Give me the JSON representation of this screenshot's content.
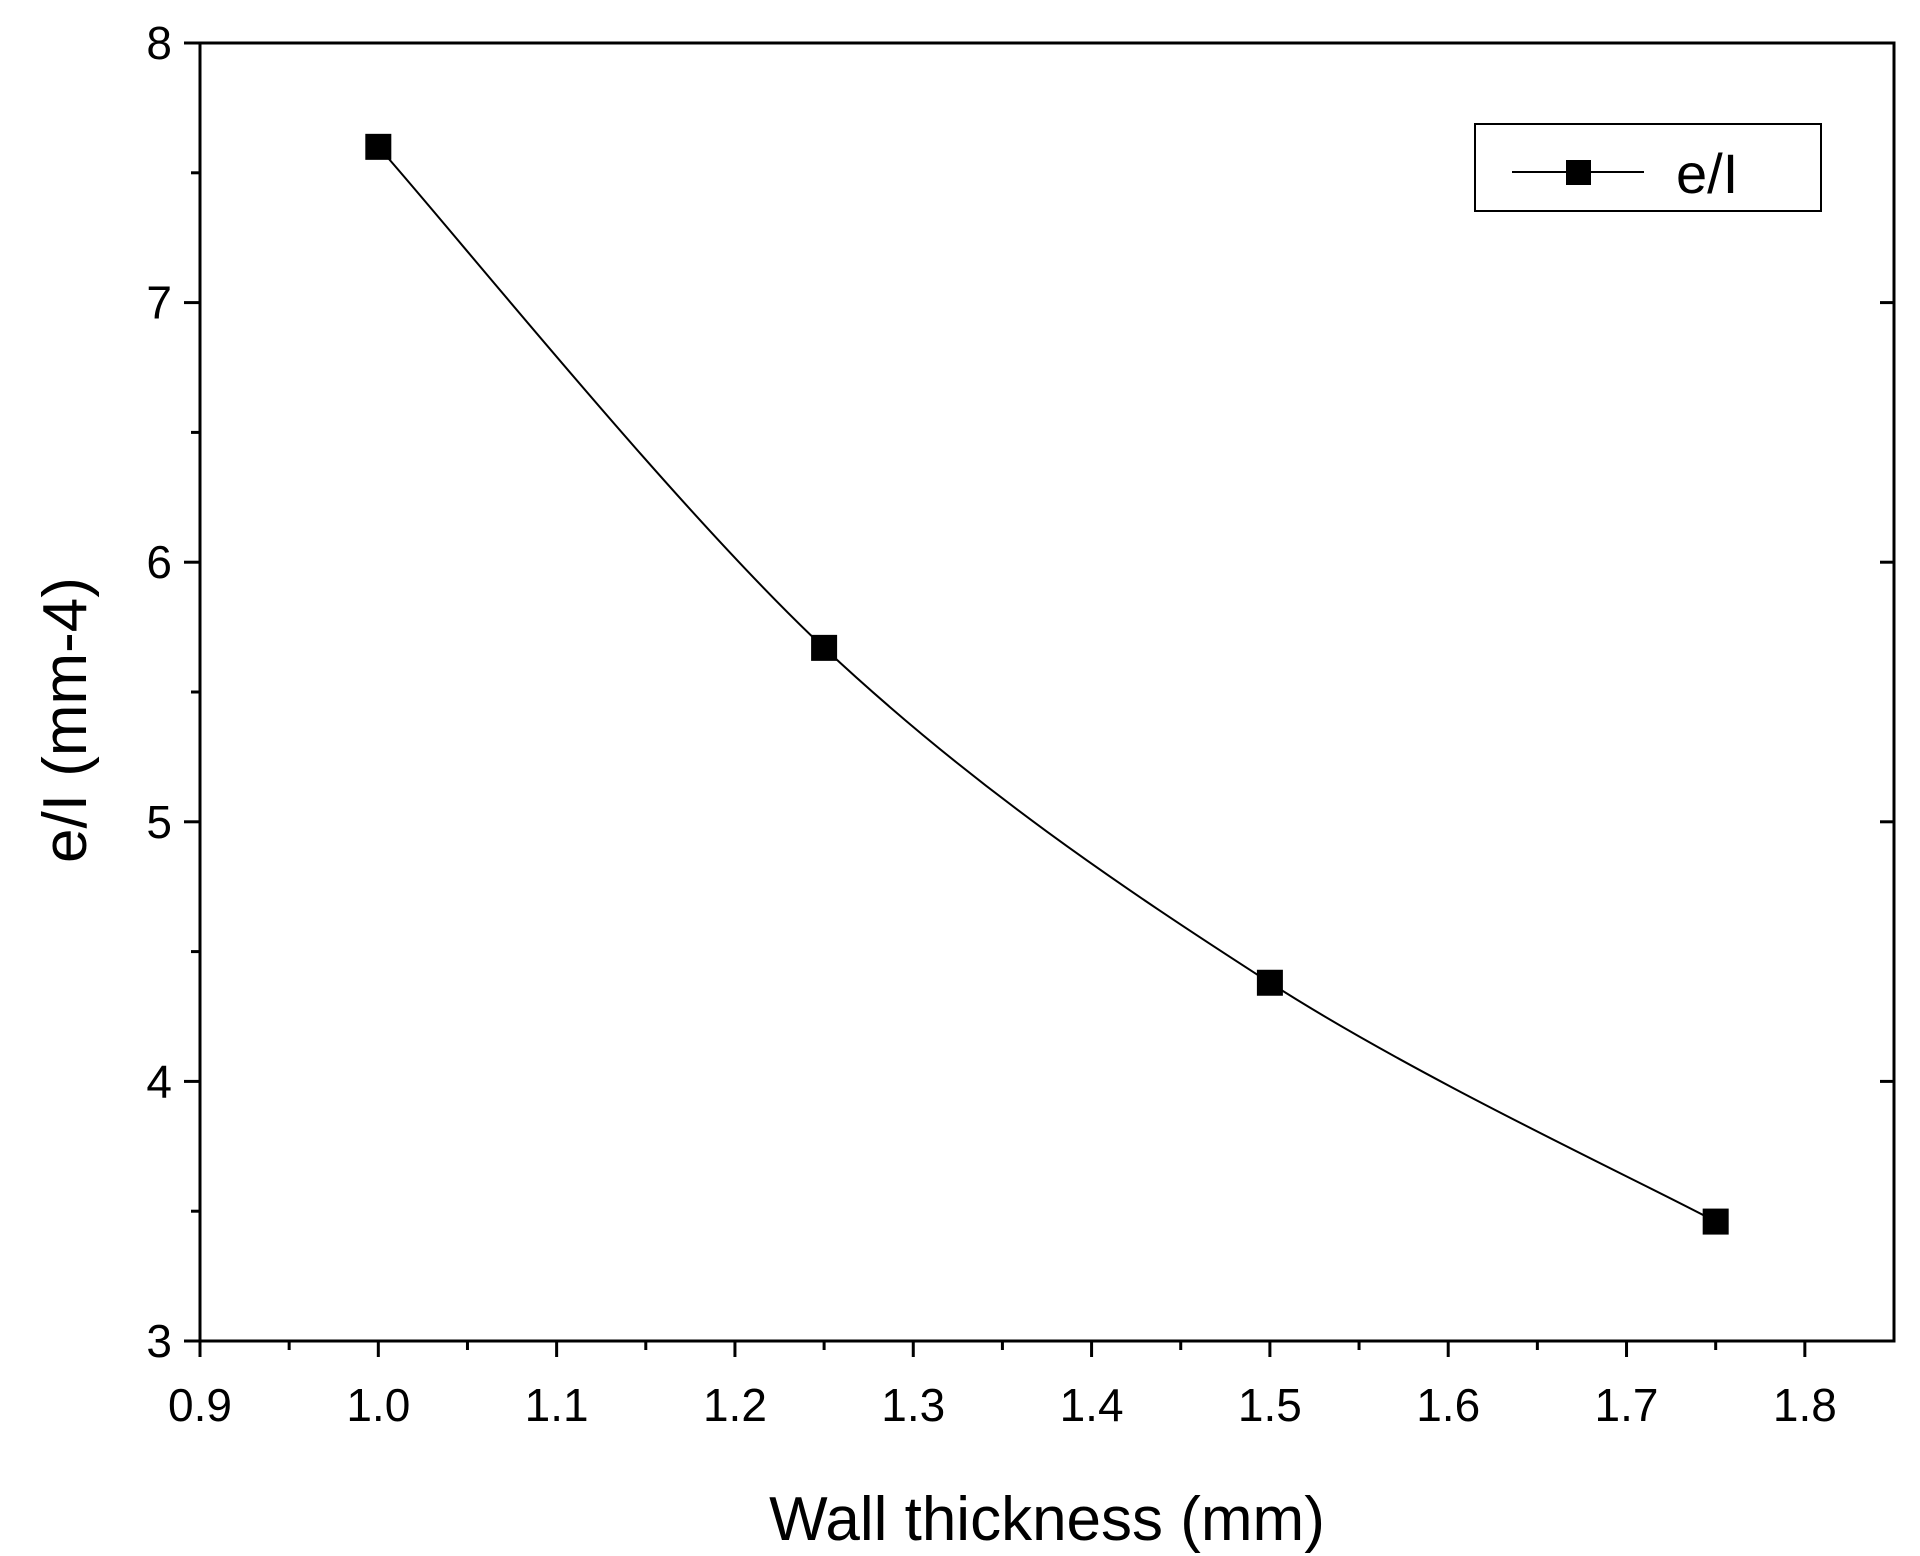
{
  "chart_data": {
    "type": "line",
    "title": "",
    "xlabel": "Wall thickness (mm)",
    "ylabel": "e/I (mm-4)",
    "xlim": [
      0.9,
      1.85
    ],
    "ylim": [
      3,
      8
    ],
    "x_ticks": [
      0.9,
      1.0,
      1.1,
      1.2,
      1.3,
      1.4,
      1.5,
      1.6,
      1.7,
      1.8
    ],
    "x_tick_labels": [
      "0.9",
      "1.0",
      "1.1",
      "1.2",
      "1.3",
      "1.4",
      "1.5",
      "1.6",
      "1.7",
      "1.8"
    ],
    "y_ticks": [
      3,
      4,
      5,
      6,
      7,
      8
    ],
    "y_tick_labels": [
      "3",
      "4",
      "5",
      "6",
      "7",
      "8"
    ],
    "grid": false,
    "legend_position": "top-right",
    "series": [
      {
        "name": "e/I",
        "marker": "square",
        "color": "#000000",
        "x": [
          1.0,
          1.25,
          1.5,
          1.75
        ],
        "y": [
          7.6,
          5.67,
          4.38,
          3.46
        ]
      }
    ]
  }
}
